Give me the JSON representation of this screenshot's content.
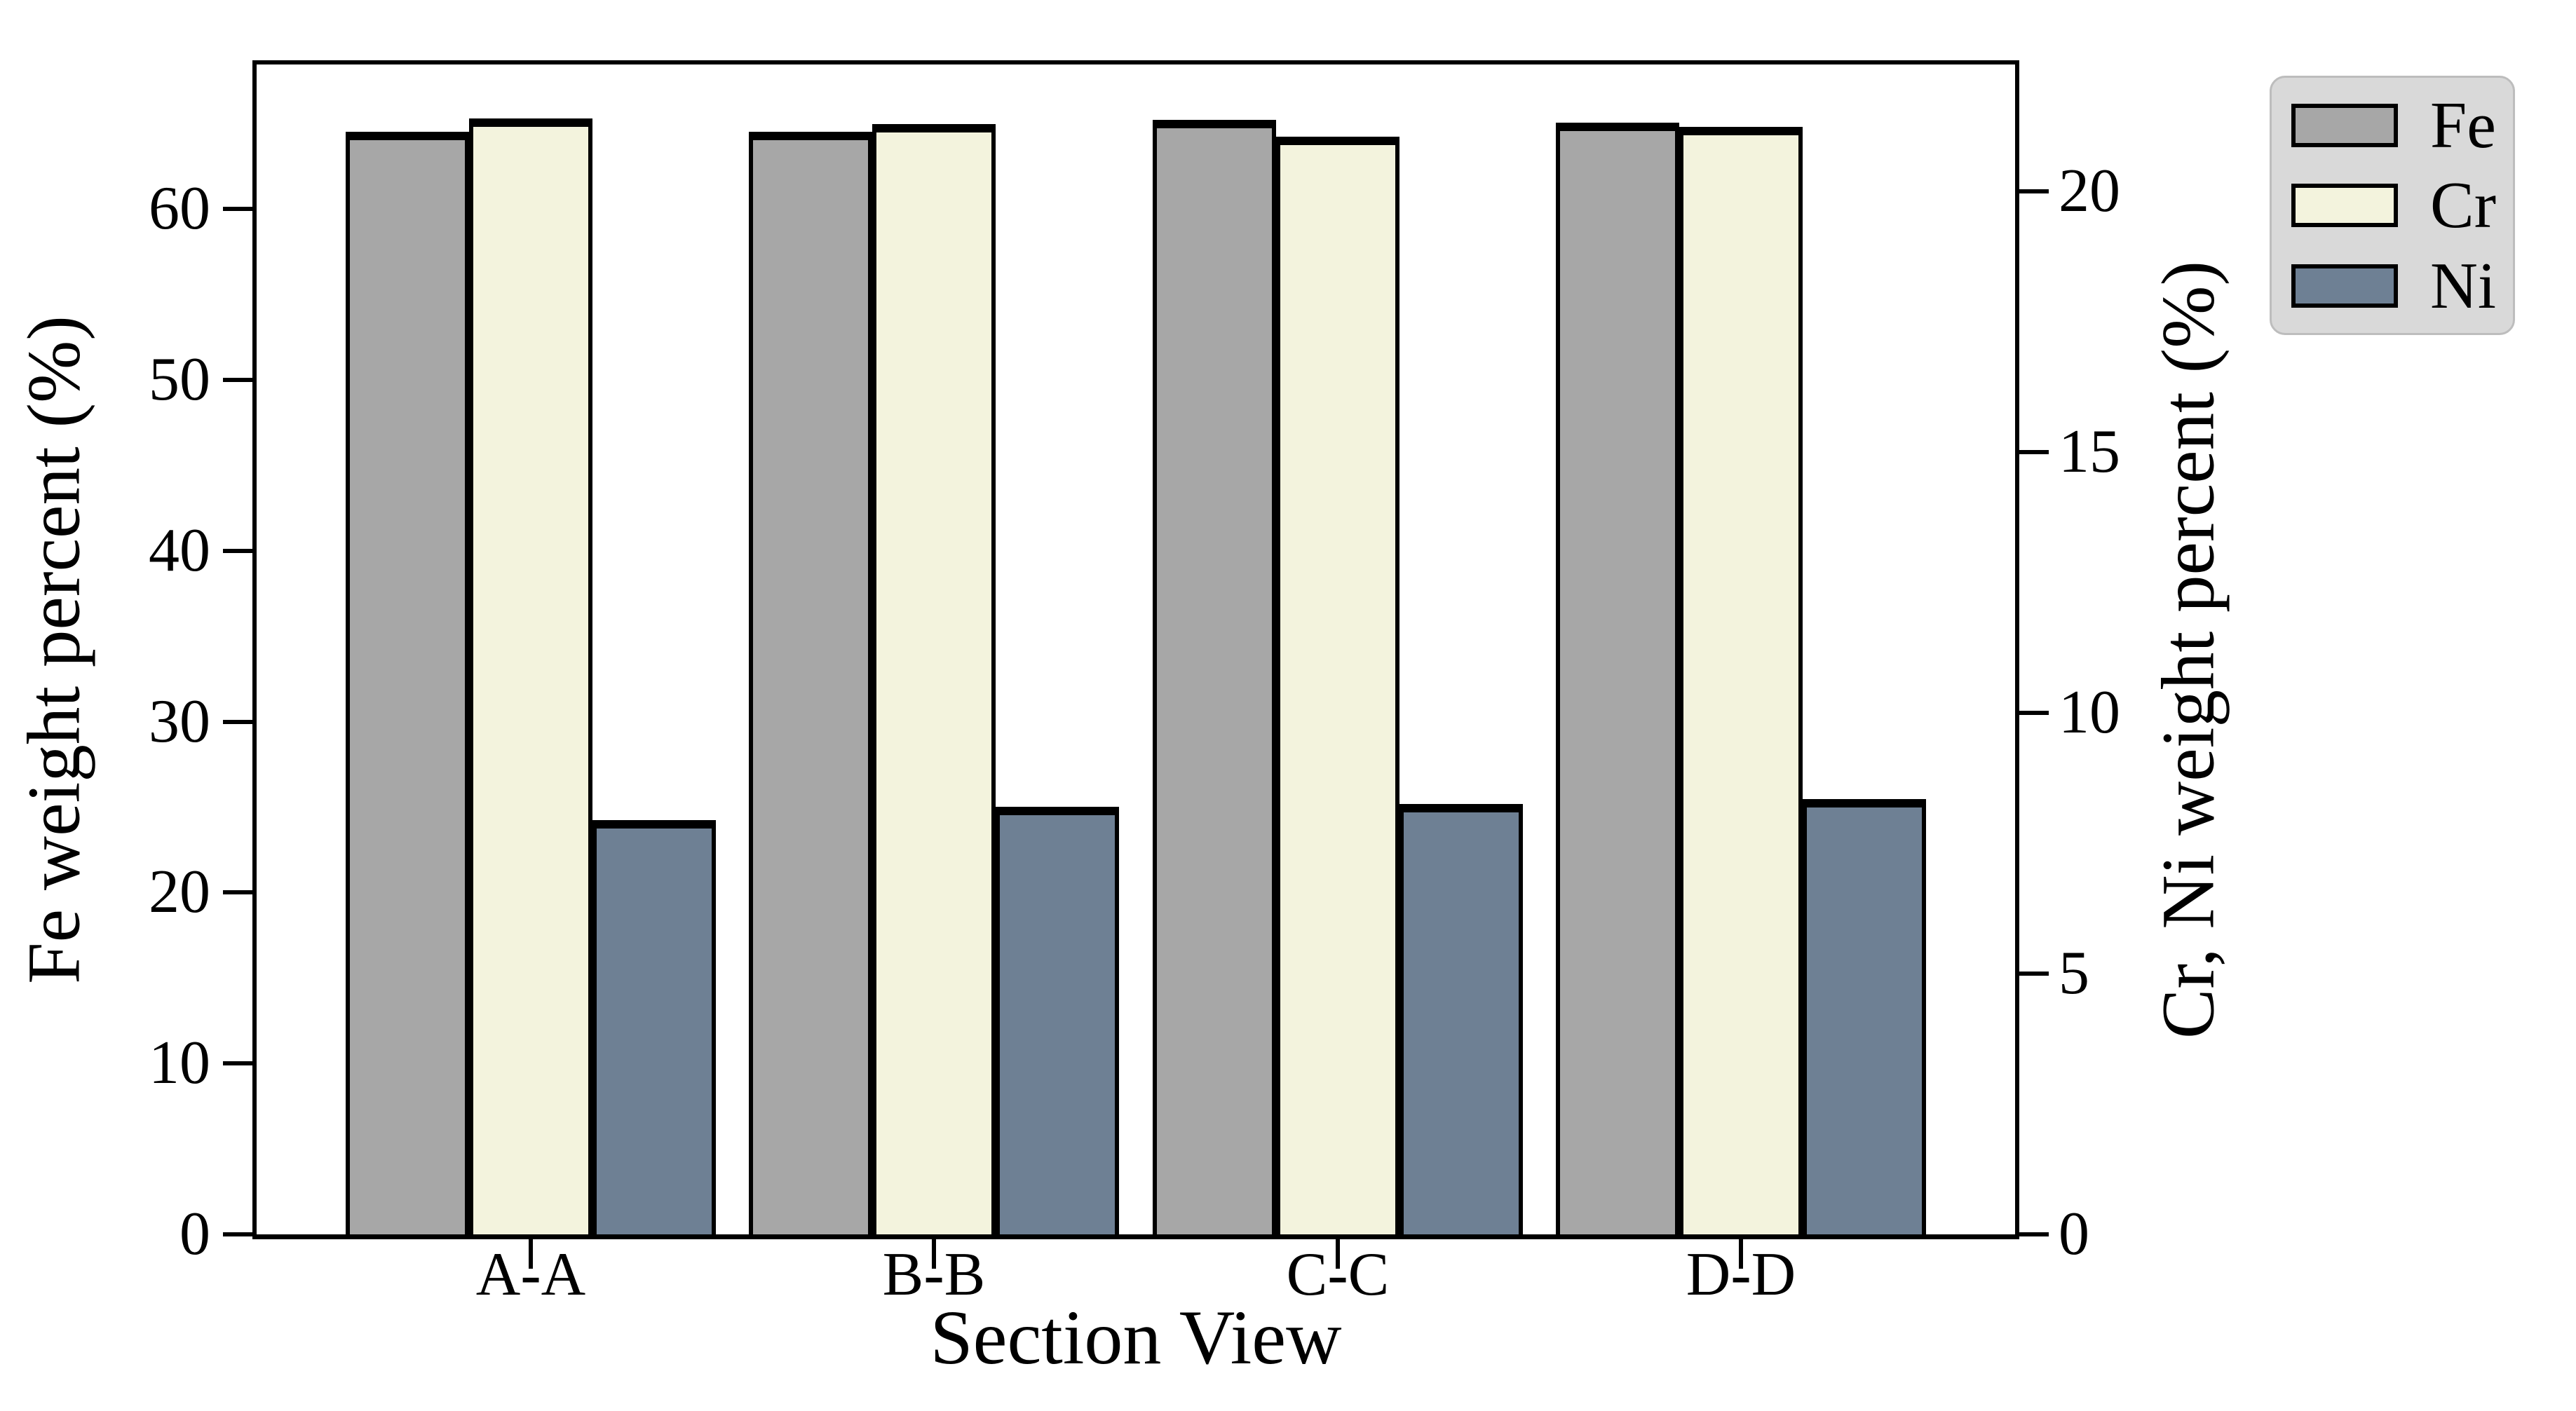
{
  "chart_data": {
    "type": "bar",
    "title": "",
    "categories": [
      "A-A",
      "B-B",
      "C-C",
      "D-D"
    ],
    "series": [
      {
        "name": "Fe",
        "axis": "left",
        "color": "#a7a7a7",
        "values": [
          64.5,
          64.5,
          65.2,
          65.05
        ]
      },
      {
        "name": "Cr",
        "axis": "right",
        "color": "#f3f3dd",
        "values": [
          21.4,
          21.3,
          21.05,
          21.25
        ]
      },
      {
        "name": "Ni",
        "axis": "right",
        "color": "#6e8094",
        "values": [
          7.95,
          8.2,
          8.25,
          8.35
        ]
      }
    ],
    "xlabel": "Section View",
    "ylabel_left": "Fe weight percent (%)",
    "ylabel_right": "Cr, Ni weight percent (%)",
    "left_axis": {
      "ticks": [
        0,
        10,
        20,
        30,
        40,
        50,
        60
      ],
      "lim": [
        0,
        68.45
      ]
    },
    "right_axis": {
      "ticks": [
        0,
        5,
        10,
        15,
        20
      ],
      "lim": [
        0,
        22.44
      ]
    },
    "legend": {
      "position": "upper right",
      "entries": [
        "Fe",
        "Cr",
        "Ni"
      ]
    },
    "grid": false,
    "bar_edge_color": "#000000",
    "colors": {
      "background": "#ffffff",
      "frame": "#000000",
      "legend_bg": "#d9d9d9",
      "legend_border": "#bdbdbd"
    }
  }
}
